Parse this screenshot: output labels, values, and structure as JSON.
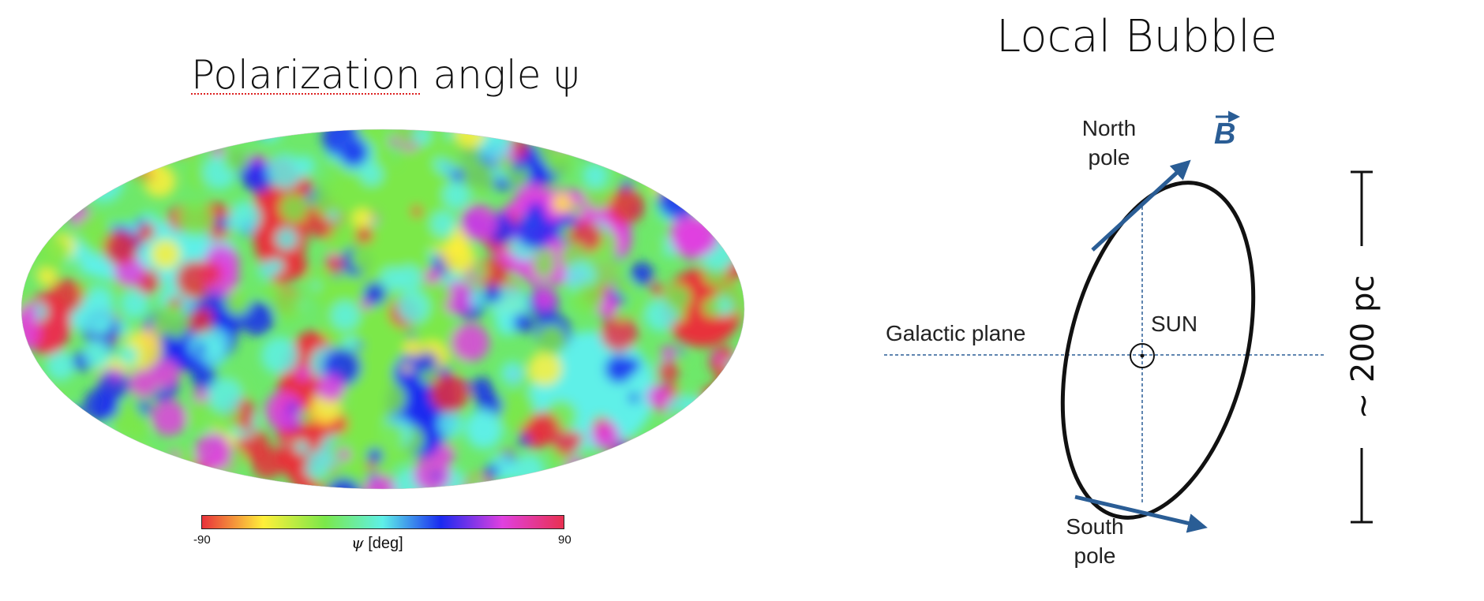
{
  "left_panel": {
    "title_word": "Polarization",
    "title_rest": " angle ψ",
    "colorbar": {
      "min": "-90",
      "max": "90",
      "label_symbol": "ψ",
      "label_unit": " [deg]"
    },
    "colors": [
      "#e8303a",
      "#ffef3a",
      "#7be84a",
      "#5ef0e8",
      "#1a2af0",
      "#e040e0",
      "#e83050"
    ]
  },
  "right_panel": {
    "title": "Local Bubble",
    "north_pole": [
      "North",
      "pole"
    ],
    "south_pole": [
      "South",
      "pole"
    ],
    "field_label": "B",
    "plane_label": "Galactic plane",
    "sun_label": "SUN",
    "scale_label": "~ 200 pc",
    "arrow_color": "#2a5d95"
  }
}
